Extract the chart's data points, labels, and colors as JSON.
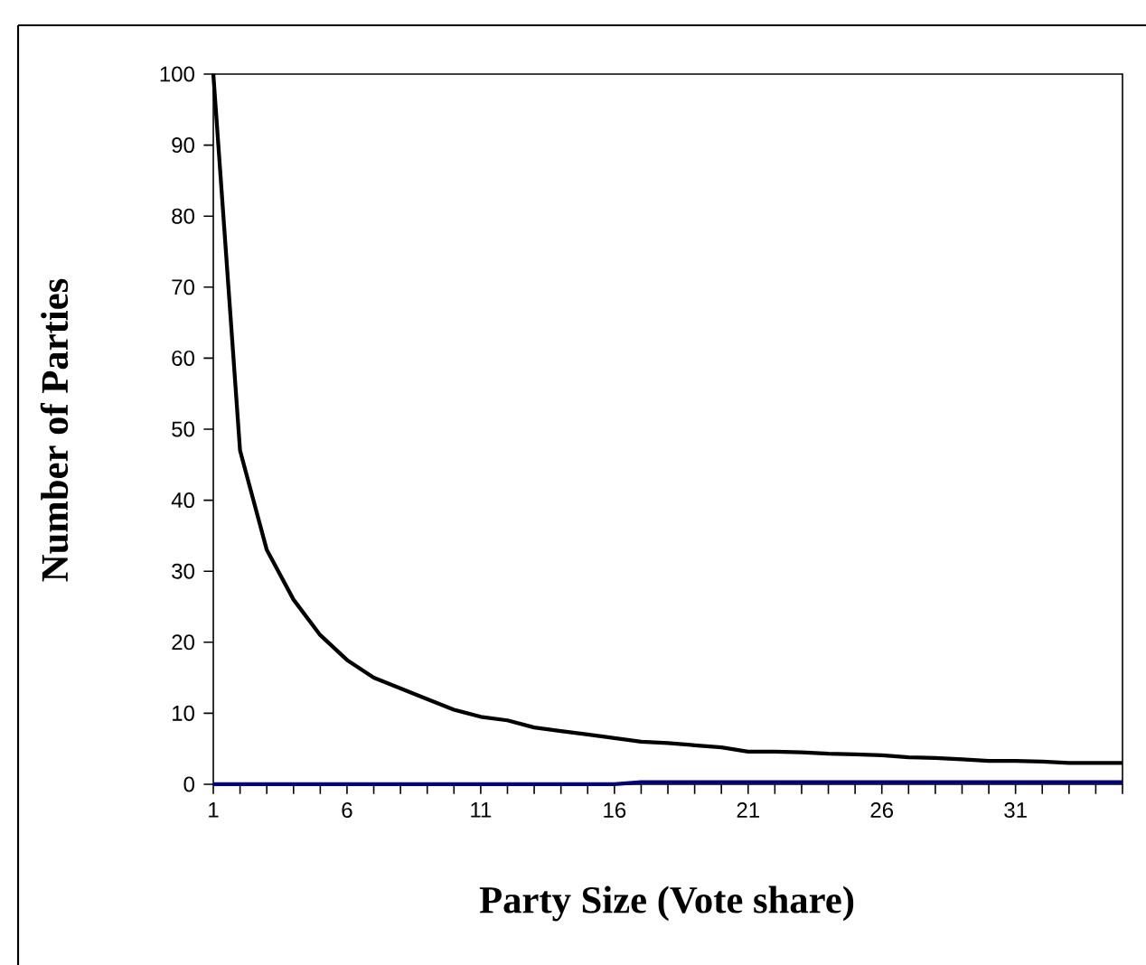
{
  "chart_data": {
    "type": "line",
    "xlabel": "Party Size (Vote share)",
    "ylabel": "Number of Parties",
    "x": [
      1,
      2,
      3,
      4,
      5,
      6,
      7,
      8,
      9,
      10,
      11,
      12,
      13,
      14,
      15,
      16,
      17,
      18,
      19,
      20,
      21,
      22,
      23,
      24,
      25,
      26,
      27,
      28,
      29,
      30,
      31,
      32,
      33,
      34,
      35
    ],
    "series": [
      {
        "color": "#000000",
        "values": [
          100,
          47,
          33,
          26,
          21,
          17.5,
          15,
          13.5,
          12,
          10.5,
          9.5,
          9,
          8,
          7.5,
          7,
          6.5,
          6,
          5.8,
          5.5,
          5.2,
          4.6,
          4.6,
          4.5,
          4.3,
          4.2,
          4.1,
          3.8,
          3.7,
          3.5,
          3.3,
          3.3,
          3.2,
          3,
          3,
          3
        ]
      },
      {
        "color": "#000080",
        "values": [
          0,
          0,
          0,
          0,
          0,
          0,
          0,
          0,
          0,
          0,
          0,
          0,
          0,
          0,
          0,
          0,
          0.3,
          0.3,
          0.3,
          0.3,
          0.3,
          0.3,
          0.3,
          0.3,
          0.3,
          0.3,
          0.3,
          0.3,
          0.3,
          0.3,
          0.3,
          0.3,
          0.3,
          0.3,
          0.3
        ]
      }
    ],
    "xlim": [
      1,
      35
    ],
    "ylim": [
      0,
      100
    ],
    "xticks": [
      1,
      {
        "value": 2,
        "label": null
      },
      {
        "value": 3,
        "label": null
      },
      {
        "value": 4,
        "label": null
      },
      {
        "value": 5,
        "label": null
      },
      6,
      {
        "value": 7,
        "label": null
      },
      {
        "value": 8,
        "label": null
      },
      {
        "value": 9,
        "label": null
      },
      {
        "value": 10,
        "label": null
      },
      11,
      {
        "value": 12,
        "label": null
      },
      {
        "value": 13,
        "label": null
      },
      {
        "value": 14,
        "label": null
      },
      {
        "value": 15,
        "label": null
      },
      16,
      {
        "value": 17,
        "label": null
      },
      {
        "value": 18,
        "label": null
      },
      {
        "value": 19,
        "label": null
      },
      {
        "value": 20,
        "label": null
      },
      21,
      {
        "value": 22,
        "label": null
      },
      {
        "value": 23,
        "label": null
      },
      {
        "value": 24,
        "label": null
      },
      {
        "value": 25,
        "label": null
      },
      26,
      {
        "value": 27,
        "label": null
      },
      {
        "value": 28,
        "label": null
      },
      {
        "value": 29,
        "label": null
      },
      {
        "value": 30,
        "label": null
      },
      31,
      {
        "value": 32,
        "label": null
      },
      {
        "value": 33,
        "label": null
      },
      {
        "value": 34,
        "label": null
      },
      {
        "value": 35,
        "label": null
      }
    ],
    "yticks": [
      0,
      10,
      20,
      30,
      40,
      50,
      60,
      70,
      80,
      90,
      100
    ]
  }
}
